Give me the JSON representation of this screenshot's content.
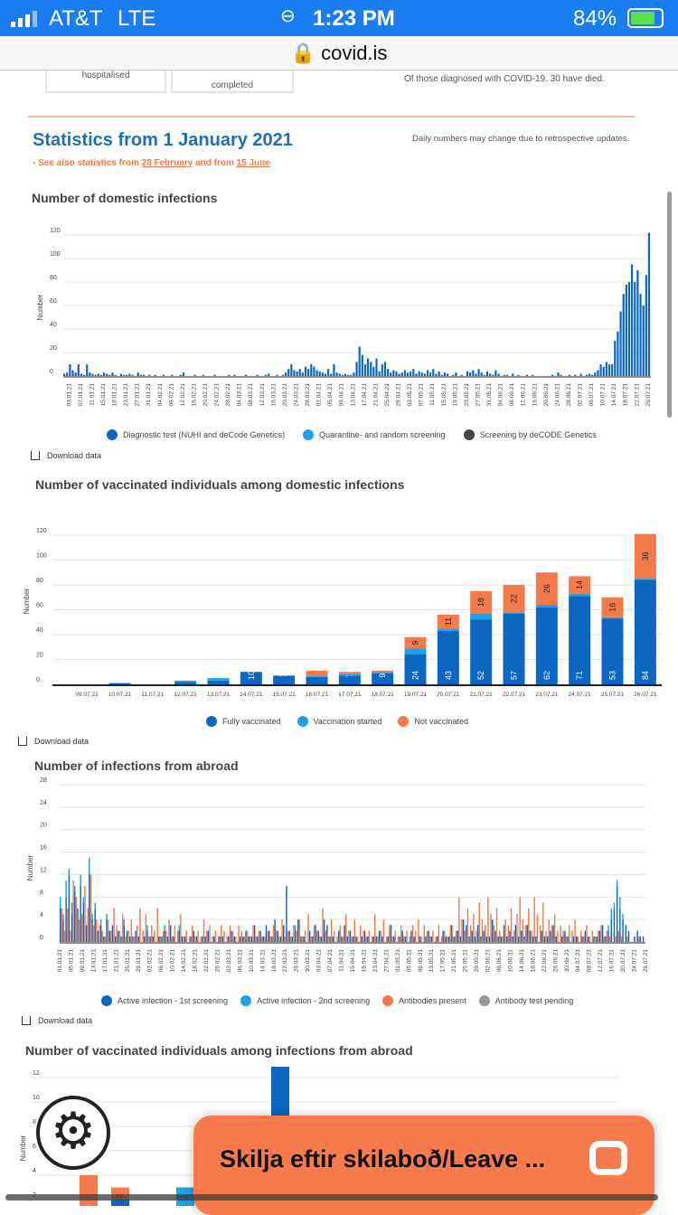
{
  "status_bar": {
    "carrier": "AT&T",
    "network": "LTE",
    "time": "1:23 PM",
    "battery": "84%"
  },
  "url_bar": {
    "domain": "covid.is"
  },
  "cards": [
    {
      "label": "hospitalised"
    },
    {
      "label": "completed"
    }
  ],
  "deaths_note": "Of those diagnosed with COVID-19, 30 have died.",
  "section": {
    "title": "Statistics from 1 January 2021",
    "see_also_prefix": "- See also statistics from ",
    "link1": "28 February",
    "and_from": " and from ",
    "link2": "15 June",
    "note": "Daily numbers may change due to retrospective updates."
  },
  "download_label": "Download data",
  "chat": {
    "label": "Skilja eftir skilaboð/Leave ..."
  },
  "chart_data": [
    {
      "type": "bar",
      "title": "Number of domestic infections",
      "ylabel": "Number",
      "ylim": [
        0,
        120
      ],
      "yticks": [
        0,
        20,
        40,
        60,
        80,
        100,
        120
      ],
      "start_date": "01.01.21",
      "xticks": [
        "03.01.21",
        "07.01.21",
        "11.01.21",
        "15.01.21",
        "19.01.21",
        "23.01.21",
        "27.01.21",
        "31.01.21",
        "04.02.21",
        "08.02.21",
        "12.02.21",
        "16.02.21",
        "20.02.21",
        "24.02.21",
        "28.02.21",
        "04.03.21",
        "08.03.21",
        "12.03.21",
        "16.03.21",
        "20.03.21",
        "24.03.21",
        "28.03.21",
        "01.04.21",
        "05.04.21",
        "09.04.21",
        "13.04.21",
        "17.04.21",
        "21.04.21",
        "25.04.21",
        "29.04.21",
        "03.05.21",
        "07.05.21",
        "11.05.21",
        "15.05.21",
        "19.05.21",
        "23.05.21",
        "27.05.21",
        "31.05.21",
        "04.06.21",
        "08.06.21",
        "12.06.21",
        "16.06.21",
        "20.06.21",
        "24.06.21",
        "28.06.21",
        "02.07.21",
        "06.07.21",
        "10.07.21",
        "14.07.21",
        "18.07.21",
        "22.07.21",
        "26.07.21"
      ],
      "legend": [
        {
          "name": "Diagnostic test (NUHI and deCode Genetics)",
          "color": "#0b67c2"
        },
        {
          "name": "Quarantine- and random screening",
          "color": "#1ea1e6"
        },
        {
          "name": "Screening by deCODE Genetics",
          "color": "#444444"
        }
      ],
      "values": [
        2,
        3,
        10,
        5,
        3,
        10,
        2,
        1,
        10,
        3,
        2,
        1,
        2,
        1,
        3,
        2,
        1,
        3,
        1,
        0,
        2,
        1,
        1,
        2,
        1,
        0,
        3,
        1,
        1,
        0,
        1,
        0,
        1,
        0,
        0,
        1,
        0,
        0,
        1,
        0,
        0,
        1,
        3,
        0,
        0,
        0,
        1,
        0,
        0,
        1,
        0,
        0,
        0,
        1,
        0,
        0,
        0,
        0,
        1,
        0,
        1,
        0,
        0,
        0,
        1,
        0,
        0,
        0,
        1,
        0,
        0,
        1,
        2,
        0,
        0,
        1,
        0,
        1,
        3,
        6,
        10,
        5,
        4,
        6,
        3,
        8,
        6,
        10,
        8,
        5,
        4,
        3,
        2,
        6,
        2,
        10,
        3,
        2,
        1,
        2,
        1,
        1,
        3,
        12,
        25,
        18,
        10,
        15,
        12,
        8,
        15,
        4,
        10,
        12,
        6,
        3,
        5,
        4,
        2,
        3,
        5,
        3,
        4,
        6,
        2,
        4,
        3,
        2,
        5,
        3,
        6,
        2,
        4,
        1,
        3,
        2,
        0,
        1,
        3,
        0,
        1,
        0,
        4,
        3,
        5,
        2,
        6,
        3,
        1,
        4,
        2,
        1,
        5,
        2,
        0,
        1,
        1,
        0,
        2,
        0,
        1,
        0,
        0,
        1,
        0,
        1,
        0,
        0,
        0,
        0,
        0,
        0,
        1,
        0,
        3,
        1,
        0,
        0,
        1,
        0,
        1,
        0,
        2,
        0,
        1,
        2,
        1,
        3,
        5,
        10,
        8,
        12,
        10,
        10,
        30,
        38,
        55,
        70,
        78,
        80,
        95,
        80,
        90,
        70,
        60,
        86,
        122
      ]
    },
    {
      "type": "bar",
      "stacked": true,
      "title": "Number of vaccinated individuals among domestic infections",
      "ylabel": "Number",
      "ylim": [
        0,
        120
      ],
      "yticks": [
        0,
        20,
        40,
        60,
        80,
        100,
        120
      ],
      "categories": [
        "09.07.21",
        "10.07.21",
        "11.07.21",
        "12.07.21",
        "13.07.21",
        "14.07.21",
        "15.07.21",
        "16.07.21",
        "17.07.21",
        "18.07.21",
        "19.07.21",
        "20.07.21",
        "21.07.21",
        "22.07.21",
        "23.07.21",
        "24.07.21",
        "25.07.21",
        "26.07.21"
      ],
      "series": [
        {
          "name": "Fully vaccinated",
          "color": "#0b67c2",
          "values": [
            0,
            1,
            0,
            2,
            3,
            10,
            7,
            6,
            7,
            9,
            24,
            43,
            52,
            57,
            62,
            71,
            53,
            84
          ]
        },
        {
          "name": "Vaccination started",
          "color": "#1ea1e6",
          "values": [
            0,
            0,
            0,
            1,
            2,
            0,
            0,
            1,
            1,
            1,
            5,
            2,
            5,
            1,
            2,
            2,
            1,
            1
          ]
        },
        {
          "name": "Not vaccinated",
          "color": "#f47a4b",
          "values": [
            0,
            0,
            0,
            0,
            0,
            0,
            0,
            4,
            2,
            1,
            9,
            11,
            18,
            22,
            26,
            14,
            16,
            36
          ]
        }
      ]
    },
    {
      "type": "bar",
      "stacked": true,
      "title": "Number of infections from abroad",
      "ylabel": "Number",
      "ylim": [
        0,
        28
      ],
      "yticks": [
        0,
        4,
        8,
        12,
        16,
        20,
        24,
        28
      ],
      "start_date": "01.01.21",
      "xticks": [
        "01.01.21",
        "05.01.21",
        "09.01.21",
        "13.01.21",
        "17.01.21",
        "21.01.21",
        "25.01.21",
        "29.01.21",
        "02.02.21",
        "06.02.21",
        "10.02.21",
        "14.02.21",
        "18.02.21",
        "22.02.21",
        "26.02.21",
        "02.03.21",
        "06.03.21",
        "10.03.21",
        "14.03.21",
        "18.03.21",
        "22.03.21",
        "26.03.21",
        "30.03.21",
        "03.04.21",
        "07.04.21",
        "11.04.21",
        "15.04.21",
        "19.04.21",
        "23.04.21",
        "27.04.21",
        "01.05.21",
        "05.05.21",
        "09.05.21",
        "13.05.21",
        "17.05.21",
        "21.05.21",
        "25.05.21",
        "29.05.21",
        "02.06.21",
        "06.06.21",
        "10.06.21",
        "14.06.21",
        "18.06.21",
        "22.06.21",
        "26.06.21",
        "30.06.21",
        "04.07.21",
        "08.07.21",
        "12.07.21",
        "16.07.21",
        "20.07.21",
        "24.07.21",
        "26.07.21"
      ],
      "series": [
        {
          "name": "Active infection - 1st screening",
          "color": "#0b67c2",
          "values": [
            6,
            4,
            8,
            12,
            5,
            9,
            6,
            10,
            7,
            3,
            12,
            4,
            6,
            2,
            3,
            1,
            4,
            2,
            3,
            1,
            2,
            1,
            3,
            2,
            1,
            1,
            2,
            1,
            0,
            1,
            2,
            1,
            1,
            0,
            1,
            1,
            2,
            1,
            3,
            1,
            0,
            2,
            1,
            1,
            0,
            1,
            2,
            1,
            0,
            1,
            1,
            2,
            0,
            1,
            0,
            1,
            1,
            0,
            1,
            2,
            1,
            0,
            1,
            1,
            2,
            1,
            1,
            3,
            1,
            2,
            1,
            3,
            2,
            1,
            4,
            2,
            1,
            3,
            10,
            2,
            1,
            2,
            4,
            1,
            1,
            0,
            2,
            1,
            3,
            2,
            1,
            4,
            3,
            1,
            1,
            0,
            2,
            1,
            3,
            1,
            2,
            1,
            1,
            0,
            1,
            2,
            1,
            0,
            1,
            1,
            2,
            1,
            0,
            1,
            3,
            1,
            0,
            1,
            2,
            1,
            0,
            2,
            1,
            0,
            1,
            0,
            1,
            2,
            1,
            0,
            1,
            0,
            2,
            1,
            1,
            3,
            1,
            2,
            1,
            4,
            3,
            1,
            2,
            1,
            3,
            1,
            2,
            1,
            1,
            4,
            2,
            1,
            1,
            3,
            1,
            2,
            1,
            3,
            1,
            2,
            1,
            3,
            2,
            1,
            1,
            0,
            2,
            1,
            1,
            2,
            3,
            1,
            0,
            1,
            2,
            1,
            0,
            1,
            1,
            0,
            1,
            2,
            1,
            0,
            1,
            1,
            2,
            3,
            1,
            2,
            4,
            6,
            10,
            6,
            4,
            3,
            2,
            0,
            1,
            2,
            1,
            1
          ]
        },
        {
          "name": "Active infection - 2nd screening",
          "color": "#1ea1e6",
          "values": [
            2,
            1,
            3,
            1,
            2,
            1,
            0,
            2,
            1,
            0,
            3,
            1,
            1,
            0,
            1,
            0,
            1,
            0,
            0,
            0,
            0,
            0,
            1,
            0,
            0,
            0,
            0,
            0,
            0,
            0,
            1,
            0,
            0,
            0,
            0,
            0,
            1,
            0,
            0,
            0,
            0,
            1,
            0,
            0,
            0,
            0,
            0,
            0,
            0,
            0,
            0,
            0,
            0,
            0,
            0,
            0,
            0,
            0,
            0,
            0,
            0,
            0,
            0,
            0,
            0,
            0,
            0,
            0,
            0,
            0,
            0,
            0,
            0,
            0,
            0,
            0,
            0,
            0,
            0,
            0,
            0,
            1,
            0,
            0,
            0,
            0,
            0,
            0,
            0,
            0,
            0,
            0,
            0,
            0,
            0,
            0,
            0,
            0,
            0,
            0,
            0,
            0,
            0,
            0,
            0,
            0,
            0,
            0,
            0,
            0,
            0,
            0,
            0,
            0,
            0,
            0,
            0,
            0,
            0,
            0,
            0,
            0,
            0,
            0,
            0,
            0,
            0,
            0,
            0,
            0,
            0,
            0,
            0,
            0,
            0,
            0,
            0,
            0,
            0,
            0,
            0,
            0,
            0,
            0,
            0,
            0,
            0,
            0,
            0,
            0,
            0,
            0,
            0,
            0,
            0,
            0,
            0,
            0,
            0,
            0,
            0,
            0,
            0,
            0,
            0,
            0,
            0,
            0,
            0,
            0,
            0,
            0,
            0,
            0,
            0,
            0,
            0,
            0,
            0,
            0,
            0,
            0,
            0,
            0,
            0,
            0,
            0,
            0,
            0,
            1,
            2,
            1,
            1,
            2,
            1,
            0,
            0,
            0,
            0,
            0,
            0,
            0
          ]
        },
        {
          "name": "Antibodies present",
          "color": "#f47a4b",
          "values": [
            6,
            2,
            6,
            2,
            11,
            8,
            4,
            5,
            10,
            6,
            12,
            3,
            4,
            3,
            2,
            1,
            4,
            2,
            6,
            3,
            2,
            5,
            1,
            2,
            4,
            1,
            3,
            6,
            2,
            5,
            1,
            3,
            2,
            6,
            1,
            2,
            2,
            4,
            1,
            3,
            2,
            5,
            1,
            2,
            1,
            3,
            1,
            2,
            1,
            4,
            2,
            3,
            1,
            2,
            1,
            3,
            2,
            1,
            3,
            2,
            1,
            3,
            2,
            1,
            2,
            1,
            3,
            1,
            2,
            1,
            1,
            2,
            1,
            3,
            2,
            1,
            4,
            1,
            2,
            1,
            3,
            2,
            4,
            1,
            2,
            5,
            1,
            3,
            2,
            1,
            6,
            2,
            1,
            4,
            2,
            1,
            3,
            1,
            5,
            2,
            1,
            4,
            1,
            3,
            2,
            1,
            2,
            1,
            5,
            1,
            2,
            4,
            1,
            3,
            1,
            2,
            1,
            3,
            1,
            2,
            1,
            3,
            2,
            4,
            1,
            3,
            2,
            1,
            2,
            1,
            3,
            1,
            2,
            1,
            3,
            1,
            2,
            8,
            4,
            2,
            6,
            3,
            5,
            2,
            7,
            4,
            3,
            8,
            5,
            3,
            6,
            2,
            1,
            4,
            3,
            6,
            2,
            5,
            8,
            4,
            3,
            6,
            2,
            8,
            5,
            3,
            7,
            2,
            4,
            3,
            5,
            2,
            3,
            2,
            1,
            3,
            2,
            4,
            1,
            2,
            1,
            3,
            1,
            2,
            1,
            2,
            3,
            1,
            2,
            1,
            0,
            1,
            2,
            1,
            0,
            1,
            0,
            0,
            0,
            1,
            0,
            0,
            0
          ]
        },
        {
          "name": "Antibody test pending",
          "color": "#999999",
          "values": []
        }
      ]
    },
    {
      "type": "bar",
      "stacked": true,
      "title": "Number of vaccinated individuals among infections from abroad",
      "ylabel": "Number",
      "yticks": [
        2,
        4,
        6,
        8,
        10,
        12
      ],
      "bars": [
        {
          "full": 0,
          "started": 0,
          "not": 4,
          "label": ""
        },
        {
          "full": 2,
          "started": 0,
          "not": 1,
          "label": "1"
        },
        {
          "full": 0,
          "started": 3,
          "not": 0,
          "label": "1"
        },
        {
          "full": 13,
          "started": 0,
          "not": 0,
          "label": ""
        }
      ]
    }
  ]
}
